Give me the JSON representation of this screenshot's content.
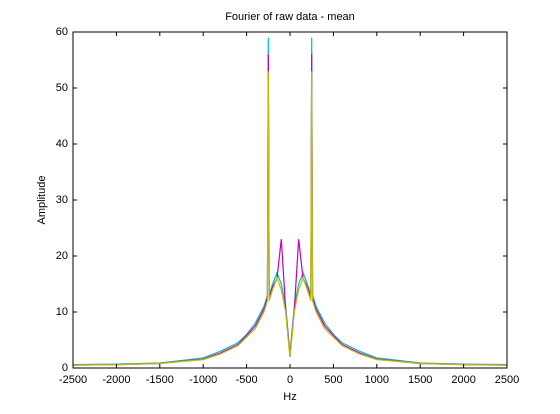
{
  "chart_data": {
    "type": "line",
    "title": "Fourier of raw data - mean",
    "xlabel": "Hz",
    "ylabel": "Amplitude",
    "x": [
      -2500,
      -2000,
      -1500,
      -1000,
      -800,
      -600,
      -500,
      -400,
      -300,
      -260,
      -250,
      -240,
      -200,
      -150,
      -100,
      -50,
      -20,
      0,
      20,
      50,
      100,
      150,
      200,
      240,
      250,
      260,
      300,
      400,
      500,
      600,
      800,
      1000,
      1500,
      2000,
      2500
    ],
    "series": [
      {
        "color": "#00bfbf",
        "values": [
          0.6,
          0.7,
          0.9,
          1.8,
          3,
          4.5,
          6,
          8,
          11,
          13,
          59,
          13,
          15,
          17,
          15,
          11,
          6,
          2.5,
          6,
          11,
          15,
          17,
          15,
          13,
          59,
          13,
          11,
          8,
          6,
          4.5,
          3,
          1.8,
          0.9,
          0.7,
          0.6
        ]
      },
      {
        "color": "#bf00bf",
        "values": [
          0.5,
          0.6,
          0.8,
          1.6,
          2.7,
          4.2,
          5.8,
          7.5,
          10.5,
          12.5,
          56,
          12.5,
          14.5,
          16,
          23,
          10.5,
          5.5,
          2,
          5.5,
          10.5,
          23,
          16,
          14.5,
          12.5,
          56,
          12.5,
          10.5,
          7.5,
          5.8,
          4.2,
          2.7,
          1.6,
          0.8,
          0.6,
          0.5
        ]
      },
      {
        "color": "#bfbf00",
        "values": [
          0.5,
          0.6,
          0.8,
          1.5,
          2.5,
          4,
          5.5,
          7,
          10,
          12,
          53,
          12,
          14,
          16,
          14,
          10,
          5,
          2,
          5,
          10,
          14,
          16,
          14,
          12,
          53,
          12,
          10,
          7,
          5.5,
          4,
          2.5,
          1.5,
          0.8,
          0.6,
          0.5
        ]
      }
    ],
    "xlim": [
      -2500,
      2500
    ],
    "xticks": [
      -2500,
      -2000,
      -1500,
      -1000,
      -500,
      0,
      500,
      1000,
      1500,
      2000,
      2500
    ],
    "ylim": [
      0,
      60
    ],
    "yticks": [
      0,
      10,
      20,
      30,
      40,
      50,
      60
    ]
  }
}
